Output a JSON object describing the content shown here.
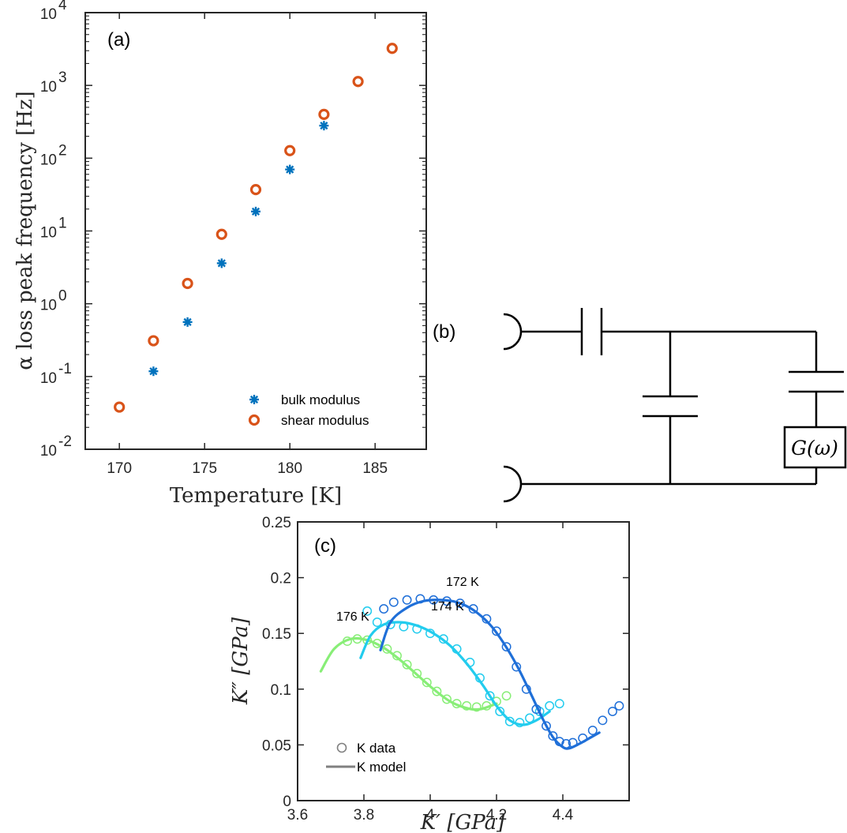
{
  "chart_data": [
    {
      "panel": "(a)",
      "type": "scatter",
      "xlabel": "Temperature [K]",
      "ylabel": "α loss peak frequency [Hz]",
      "yscale": "log",
      "xlim": [
        168,
        188
      ],
      "ylim": [
        0.01,
        10000
      ],
      "xticks": [
        170,
        175,
        180,
        185
      ],
      "xtick_labels": [
        "170",
        "175",
        "180",
        "185"
      ],
      "yticks": [
        0.01,
        0.1,
        1,
        10,
        100,
        1000,
        10000
      ],
      "ytick_mantissa": [
        "10",
        "10",
        "10",
        "10",
        "10",
        "10",
        "10"
      ],
      "ytick_exponents": [
        "-2",
        "-1",
        "0",
        "1",
        "2",
        "3",
        "4"
      ],
      "legend_position": "bottom-right",
      "series": [
        {
          "name": "bulk modulus",
          "marker": "asterisk",
          "color": "#0072BD",
          "x": [
            172,
            174,
            176,
            178,
            180,
            182
          ],
          "y": [
            0.118,
            0.56,
            3.6,
            18.5,
            70,
            280
          ]
        },
        {
          "name": "shear modulus",
          "marker": "circle",
          "color": "#D95319",
          "x": [
            170,
            172,
            174,
            176,
            178,
            180,
            182,
            184,
            186
          ],
          "y": [
            0.038,
            0.31,
            1.9,
            9.0,
            37,
            127,
            400,
            1130,
            3230
          ]
        }
      ]
    },
    {
      "panel": "(b)",
      "type": "circuit",
      "element_label": "G(ω)"
    },
    {
      "panel": "(c)",
      "type": "scatter",
      "xlabel": "K′ [GPa]",
      "ylabel": "K″ [GPa]",
      "xlim": [
        3.6,
        4.6
      ],
      "ylim": [
        0,
        0.25
      ],
      "xticks": [
        3.6,
        3.8,
        4.0,
        4.2,
        4.4
      ],
      "xtick_labels": [
        "3.6",
        "3.8",
        "4",
        "4.2",
        "4.4"
      ],
      "yticks": [
        0,
        0.05,
        0.1,
        0.15,
        0.2,
        0.25
      ],
      "ytick_labels": [
        "0",
        "0.05",
        "0.1",
        "0.15",
        "0.2",
        "0.25"
      ],
      "legend_position": "bottom-left",
      "legend": [
        "K data",
        "K model"
      ],
      "legend_color": "#808080",
      "series": [
        {
          "name": "172 K",
          "color": "#1f6fd8",
          "data_x": [
            3.86,
            3.89,
            3.93,
            3.97,
            4.01,
            4.05,
            4.09,
            4.13,
            4.17,
            4.2,
            4.23,
            4.26,
            4.29,
            4.32,
            4.35,
            4.37,
            4.39,
            4.41,
            4.43,
            4.46,
            4.49,
            4.52,
            4.55,
            4.57
          ],
          "data_y": [
            0.172,
            0.178,
            0.18,
            0.181,
            0.18,
            0.179,
            0.177,
            0.172,
            0.163,
            0.152,
            0.138,
            0.12,
            0.1,
            0.082,
            0.067,
            0.058,
            0.053,
            0.051,
            0.052,
            0.056,
            0.063,
            0.072,
            0.08,
            0.085
          ],
          "model_x": [
            3.85,
            3.88,
            3.93,
            3.98,
            4.03,
            4.08,
            4.13,
            4.18,
            4.22,
            4.26,
            4.3,
            4.34,
            4.37,
            4.4,
            4.42,
            4.45,
            4.48,
            4.51
          ],
          "model_y": [
            0.135,
            0.16,
            0.173,
            0.179,
            0.18,
            0.178,
            0.171,
            0.158,
            0.142,
            0.122,
            0.098,
            0.073,
            0.057,
            0.048,
            0.047,
            0.051,
            0.056,
            0.061
          ]
        },
        {
          "name": "174 K",
          "color": "#22ccee",
          "data_x": [
            3.81,
            3.84,
            3.88,
            3.92,
            3.96,
            4.0,
            4.04,
            4.08,
            4.12,
            4.15,
            4.18,
            4.21,
            4.24,
            4.27,
            4.3,
            4.33,
            4.36,
            4.39
          ],
          "data_y": [
            0.17,
            0.16,
            0.158,
            0.156,
            0.154,
            0.15,
            0.145,
            0.136,
            0.124,
            0.11,
            0.094,
            0.08,
            0.071,
            0.07,
            0.074,
            0.08,
            0.085,
            0.087
          ],
          "model_x": [
            3.79,
            3.82,
            3.86,
            3.91,
            3.96,
            4.01,
            4.06,
            4.11,
            4.16,
            4.2,
            4.24,
            4.28,
            4.32,
            4.36
          ],
          "model_y": [
            0.128,
            0.148,
            0.158,
            0.16,
            0.157,
            0.15,
            0.139,
            0.123,
            0.103,
            0.085,
            0.072,
            0.068,
            0.072,
            0.08
          ]
        },
        {
          "name": "176 K",
          "color": "#88ee77",
          "data_x": [
            3.75,
            3.78,
            3.81,
            3.84,
            3.87,
            3.9,
            3.93,
            3.96,
            3.99,
            4.02,
            4.05,
            4.08,
            4.11,
            4.14,
            4.17,
            4.2,
            4.23
          ],
          "data_y": [
            0.143,
            0.145,
            0.144,
            0.141,
            0.136,
            0.13,
            0.122,
            0.114,
            0.106,
            0.098,
            0.091,
            0.087,
            0.085,
            0.084,
            0.085,
            0.089,
            0.094
          ],
          "model_x": [
            3.67,
            3.71,
            3.76,
            3.81,
            3.86,
            3.91,
            3.96,
            4.01,
            4.06,
            4.11,
            4.15,
            4.2
          ],
          "model_y": [
            0.116,
            0.136,
            0.145,
            0.144,
            0.137,
            0.126,
            0.113,
            0.1,
            0.089,
            0.083,
            0.082,
            0.087
          ]
        }
      ]
    }
  ]
}
